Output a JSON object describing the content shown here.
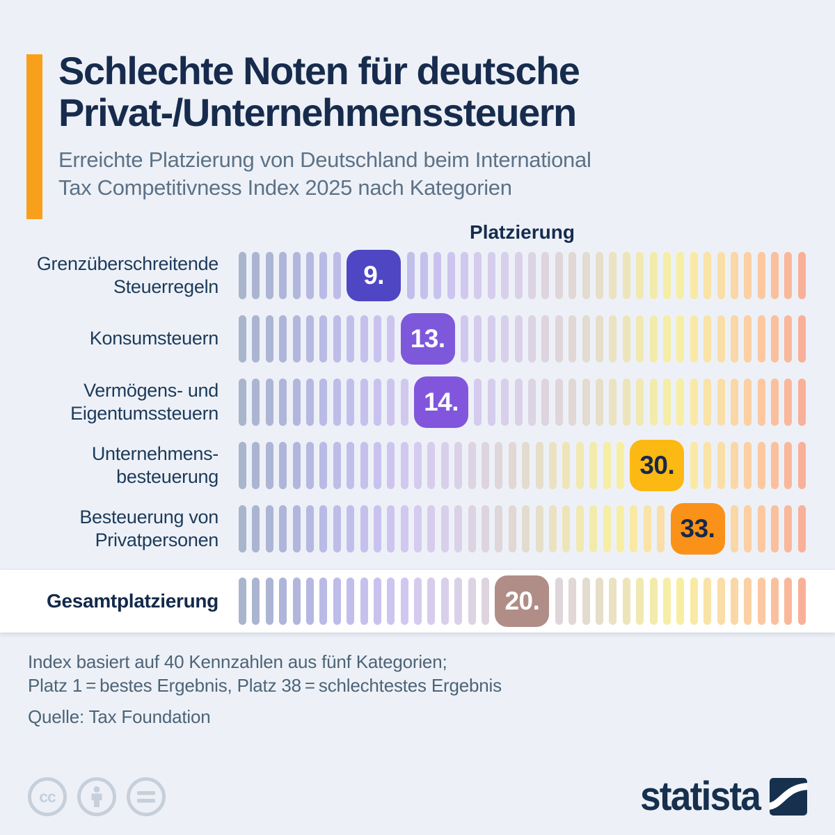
{
  "page": {
    "background": "#edf1f7",
    "accent_color": "#f8a01c"
  },
  "header": {
    "title_line1": "Schlechte Noten für deutsche",
    "title_line2": "Privat-/Unternehmenssteuern",
    "subtitle_line1": "Erreichte Platzierung von Deutschland beim International",
    "subtitle_line2": "Tax Competitivness Index 2025 nach Kategorien"
  },
  "chart": {
    "axis_title": "Platzierung",
    "scale_min": 1,
    "scale_max": 38,
    "gradient_stops": [
      "#a9b5cd",
      "#aeb5d9",
      "#babae6",
      "#c7c0ee",
      "#d2c9f0",
      "#d9d0ea",
      "#ded5dd",
      "#e4dccc",
      "#f0e8b4",
      "#f8efa2",
      "#fadfa7",
      "#fbc9a2",
      "#f9b098"
    ],
    "rows": [
      {
        "label_lines": [
          "Grenzüberschreitende",
          "Steuerregeln"
        ],
        "rank": 9,
        "badge_label": "9.",
        "badge_bg": "#4f46c4",
        "badge_text_color": "#ffffff",
        "highlight": false
      },
      {
        "label_lines": [
          "Konsumsteuern"
        ],
        "rank": 13,
        "badge_label": "13.",
        "badge_bg": "#7d58db",
        "badge_text_color": "#ffffff",
        "highlight": false
      },
      {
        "label_lines": [
          "Vermögens- und",
          "Eigentumssteuern"
        ],
        "rank": 14,
        "badge_label": "14.",
        "badge_bg": "#8156dd",
        "badge_text_color": "#ffffff",
        "highlight": false
      },
      {
        "label_lines": [
          "Unternehmens-",
          "besteuerung"
        ],
        "rank": 30,
        "badge_label": "30.",
        "badge_bg": "#fcb813",
        "badge_text_color": "#15294a",
        "highlight": false
      },
      {
        "label_lines": [
          "Besteuerung von",
          "Privatpersonen"
        ],
        "rank": 33,
        "badge_label": "33.",
        "badge_bg": "#fa9118",
        "badge_text_color": "#15294a",
        "highlight": false
      },
      {
        "label_lines": [
          "Gesamtplatzierung"
        ],
        "rank": 20,
        "badge_label": "20.",
        "badge_bg": "#b18d87",
        "badge_text_color": "#ffffff",
        "highlight": true
      }
    ]
  },
  "chart_data": {
    "type": "bar",
    "variant": "rank-strip",
    "title": "Platzierung",
    "categories": [
      "Grenzüberschreitende Steuerregeln",
      "Konsumsteuern",
      "Vermögens- und Eigentumssteuern",
      "Unternehmensbesteuerung",
      "Besteuerung von Privatpersonen",
      "Gesamtplatzierung"
    ],
    "values": [
      9,
      13,
      14,
      30,
      33,
      20
    ],
    "value_labels": [
      "9.",
      "13.",
      "14.",
      "30.",
      "33.",
      "20."
    ],
    "xlabel": "Platzierung",
    "ylabel": "",
    "xlim": [
      1,
      38
    ],
    "legend": null,
    "grid": false,
    "scale_note": "Platz 1 = bestes Ergebnis, Platz 38 = schlechtestes Ergebnis"
  },
  "footer": {
    "note_line1": "Index basiert auf 40 Kennzahlen aus fünf Kategorien;",
    "note_line2": "Platz 1 = bestes Ergebnis, Platz 38 = schlechtestes Ergebnis",
    "source": "Quelle: Tax Foundation",
    "cc_label": "cc",
    "license_icon_names": [
      "cc-icon",
      "attribution-person-icon",
      "no-derivatives-equals-icon"
    ],
    "logo_text": "statista"
  }
}
